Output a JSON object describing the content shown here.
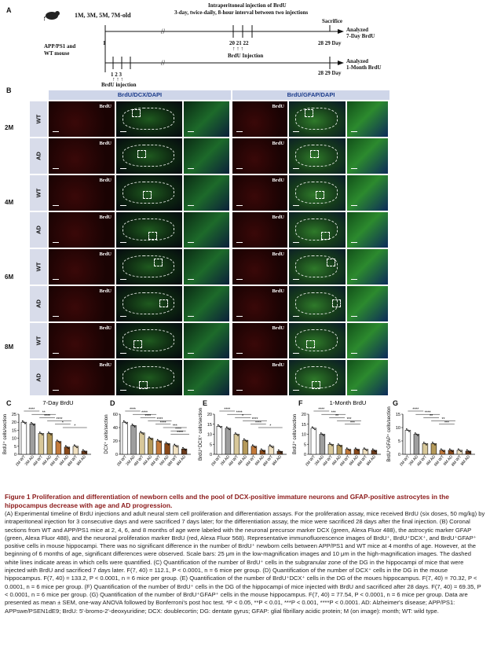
{
  "panel_letters": {
    "a": "A",
    "b": "B",
    "c": "C",
    "d": "D",
    "e": "E",
    "f": "F",
    "g": "G"
  },
  "timeline": {
    "ages": "1M, 3M, 5M, 7M-old",
    "injection_title": "Intraperitoneal injection of BrdU",
    "injection_subtitle": "3-day, twice-daily, 8-hour interval between two injections",
    "sacrifice": "Sacrifice",
    "mouse_label_1": "APP/PS1 and",
    "mouse_label_2": "WT mouse",
    "day_1": "1",
    "days_20_22": "20  21  22",
    "brdu_injection_mid": "BrdU  Injection",
    "days_28_29_top": "28  29  Day",
    "days_123": "1   2   3",
    "brdu_injection_low": "BrdU injection",
    "days_28_29_bottom": "28  29  Day",
    "analyzed_1": "Analyzed",
    "analyzed_1b": "7-Day BrdU",
    "analyzed_2": "Analyzed",
    "analyzed_2b": "1-Month BrdU"
  },
  "micro": {
    "header_left": "BrdU/DCX/DAPI",
    "header_right": "BrdU/GFAP/DAPI",
    "channel": "BrdU",
    "ages": [
      "2M",
      "4M",
      "6M",
      "8M"
    ],
    "genotypes": [
      "WT",
      "AD"
    ]
  },
  "colors": {
    "wt_bar": "#ffffff",
    "ad_bar": "#a6a6a6",
    "bar_palette": [
      "#ffffff",
      "#9e9e9e",
      "#d8c89a",
      "#b59a5a",
      "#c47a3a",
      "#8a4a1a",
      "#f0e0c0",
      "#6b3a1a"
    ],
    "caption_title": "#8b1a1a"
  },
  "chart_data": [
    {
      "type": "bar",
      "panel": "C",
      "title": "7-Day BrdU",
      "ylabel": "BrdU⁺ cells/section",
      "ylim": [
        0,
        25
      ],
      "yticks": [
        "0",
        "5",
        "10",
        "15",
        "20",
        "25"
      ],
      "categories": [
        "2M WT",
        "2M AD",
        "4M WT",
        "4M AD",
        "6M WT",
        "6M AD",
        "8M WT",
        "8M AD"
      ],
      "values": [
        20,
        19,
        13,
        13,
        8,
        4.5,
        5,
        2
      ],
      "sig": [
        "****",
        "**",
        "****",
        "****",
        "*",
        "*"
      ]
    },
    {
      "type": "bar",
      "panel": "D",
      "title": "",
      "ylabel": "DCX⁺ cells/section",
      "ylim": [
        0,
        60
      ],
      "yticks": [
        "0",
        "20",
        "40",
        "60"
      ],
      "categories": [
        "2M WT",
        "2M AD",
        "4M WT",
        "4M AD",
        "6M WT",
        "6M AD",
        "8M WT",
        "8M AD"
      ],
      "values": [
        48,
        43,
        32,
        24,
        20,
        16,
        13,
        8
      ],
      "sig": [
        "****",
        "****",
        "****",
        "****",
        "****",
        "***",
        "****",
        "****"
      ]
    },
    {
      "type": "bar",
      "panel": "E",
      "title": "",
      "ylabel": "BrdU⁺DCX⁺ cells/section",
      "ylim": [
        0,
        20
      ],
      "yticks": [
        "0",
        "5",
        "10",
        "15",
        "20"
      ],
      "categories": [
        "2M WT",
        "2M AD",
        "4M WT",
        "4M AD",
        "6M WT",
        "6M AD",
        "8M WT",
        "8M AD"
      ],
      "values": [
        14,
        13,
        10,
        7,
        4,
        2,
        4,
        1.5
      ],
      "sig": [
        "****",
        "****",
        "*",
        "****",
        "****",
        "*"
      ]
    },
    {
      "type": "bar",
      "panel": "F",
      "title": "1-Month BrdU",
      "ylabel": "BrdU⁺ cells/section",
      "ylim": [
        0,
        20
      ],
      "yticks": [
        "0",
        "5",
        "10",
        "15",
        "20"
      ],
      "categories": [
        "2M WT",
        "2M AD",
        "4M WT",
        "4M AD",
        "6M WT",
        "6M AD",
        "8M WT",
        "8M AD"
      ],
      "values": [
        13,
        10,
        5,
        4.5,
        2.5,
        2.5,
        2.5,
        2
      ],
      "sig": [
        "****",
        "***",
        "**",
        "***",
        "***"
      ]
    },
    {
      "type": "bar",
      "panel": "G",
      "title": "",
      "ylabel": "BrdU⁺GFAP⁺ cells/section",
      "ylim": [
        0,
        15
      ],
      "yticks": [
        "0",
        "5",
        "10",
        "15"
      ],
      "categories": [
        "2M WT",
        "2M AD",
        "4M WT",
        "4M AD",
        "6M WT",
        "6M AD",
        "8M WT",
        "8M AD"
      ],
      "values": [
        9,
        7.5,
        4,
        4,
        1.5,
        1.5,
        1.5,
        1.2
      ],
      "sig": [
        "****",
        "****",
        "**",
        "**",
        "***"
      ]
    }
  ],
  "caption": {
    "title": "Figure 1   Proliferation and differentiation of newborn cells and the pool of DCX-positive immature neurons and GFAP-positive astrocytes in the hippocampus decrease with age and AD progression.",
    "body": "(A) Experimental timeline of BrdU injections and adult neural stem cell proliferation and differentiation assays. For the proliferation assay, mice received BrdU (six doses, 50 mg/kg) by intraperitoneal injection for 3 consecutive days and were sacrificed 7 days later; for the differentiation assay, the mice were sacrificed 28 days after the final injection. (B) Coronal sections from WT and APP/PS1 mice at 2, 4, 6, and 8 months of age were labeled with the neuronal precursor marker DCX (green, Alexa Fluor 488), the astrocytic marker GFAP (green, Alexa Fluor 488), and the neuronal proliferation marker BrdU (red, Alexa Fluor 568). Representative immunofluorescence images of BrdU⁺, BrdU⁺DCX⁺, and BrdU⁺GFAP⁺ positive cells in mouse hippocampi. There was no significant difference in the number of BrdU⁺ newborn cells between APP/PS1 and WT mice at 4 months of age. However, at the beginning of 6 months of age, significant differences were observed. Scale bars: 25 μm in the low-magnification images and 10 μm in the high-magnification images. The dashed white lines indicate areas in which cells were quantified. (C) Quantification of the number of BrdU⁺ cells in the subgranular zone of the DG in the hippocampi of mice that were injected with BrdU and sacrificed 7 days later. F(7, 40) = 112.1, P < 0.0001, n = 6 mice per group. (D) Quantification of the number of DCX⁺ cells in the DG in the mouse hippocampus. F(7, 40) = 133.2, P < 0.0001, n = 6 mice per group. (E) Quantification of the number of BrdU⁺DCX⁺ cells in the DG of the moues hippocampus. F(7, 40) = 70.32, P < 0.0001, n = 6 mice per group. (F) Quantification of the number of BrdU⁺ cells in the DG of the hippocampi of mice injected with BrdU and sacrificed after 28 days. F(7, 40) = 69.35, P < 0.0001, n = 6 mice per group. (G) Quantification of the number of BrdU⁺GFAP⁺ cells in the mouse hippocampus. F(7, 40) = 77.54, P < 0.0001, n = 6 mice per group. Data are presented as mean ± SEM, one-way ANOVA followed by Bonferroni's post hoc test. *P < 0.05, **P < 0.01, ***P < 0.001, ****P < 0.0001. AD: Alzheimer's disease; APP/PS1: APPswe/PSEN1dE9; BrdU: 5'-bromo-2'-deoxyuridine; DCX: doublecortin; DG: dentate gyrus; GFAP: glial fibrillary acidic protein; M (on image): month; WT: wild type."
  }
}
